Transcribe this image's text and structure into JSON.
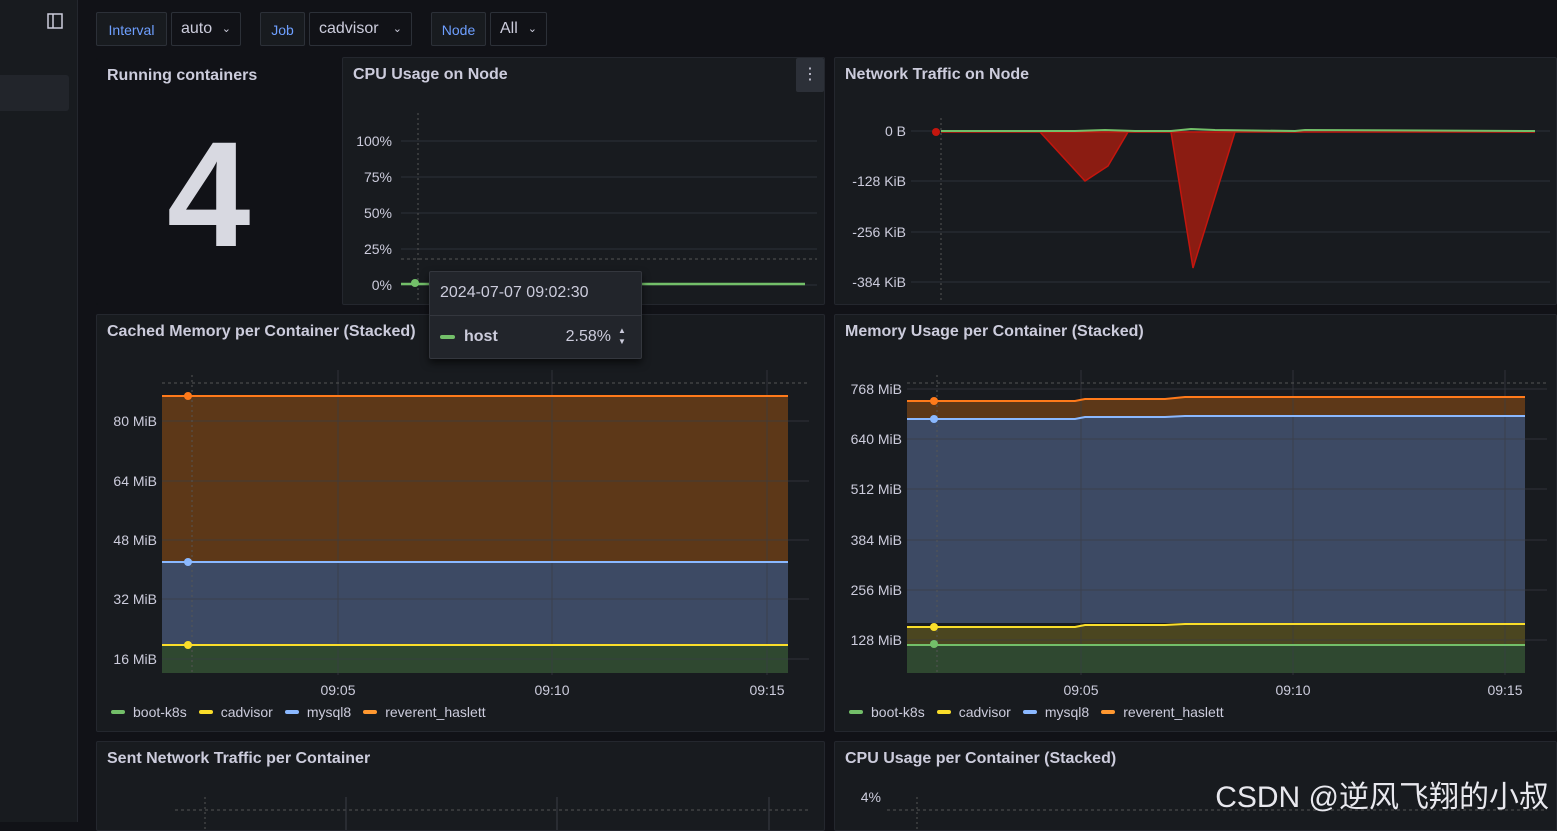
{
  "variables": [
    {
      "label": "Interval",
      "value": "auto"
    },
    {
      "label": "Job",
      "value": "cadvisor"
    },
    {
      "label": "Node",
      "value": "All"
    }
  ],
  "panels": {
    "running": {
      "title": "Running containers",
      "value": "4"
    },
    "cpu_node": {
      "title": "CPU Usage on Node",
      "y_ticks": [
        "100%",
        "75%",
        "50%",
        "25%",
        "0%"
      ]
    },
    "net_node": {
      "title": "Network Traffic on Node",
      "y_ticks": [
        "0 B",
        "-128 KiB",
        "-256 KiB",
        "-384 KiB"
      ]
    },
    "cached_mem": {
      "title": "Cached Memory per Container (Stacked)",
      "y_ticks": [
        "80 MiB",
        "64 MiB",
        "48 MiB",
        "32 MiB",
        "16 MiB"
      ],
      "x_ticks": [
        "09:05",
        "09:10",
        "09:15"
      ]
    },
    "mem_usage": {
      "title": "Memory Usage per Container (Stacked)",
      "y_ticks": [
        "768 MiB",
        "640 MiB",
        "512 MiB",
        "384 MiB",
        "256 MiB",
        "128 MiB"
      ],
      "x_ticks": [
        "09:05",
        "09:10",
        "09:15"
      ]
    },
    "sent_net": {
      "title": "Sent Network Traffic per Container"
    },
    "cpu_container": {
      "title": "CPU Usage per Container (Stacked)",
      "y_ticks": [
        "4%"
      ]
    }
  },
  "legend": [
    {
      "name": "boot-k8s",
      "color": "#73bf69"
    },
    {
      "name": "cadvisor",
      "color": "#fade2a"
    },
    {
      "name": "mysql8",
      "color": "#8ab8ff"
    },
    {
      "name": "reverent_haslett",
      "color": "#ff9830"
    }
  ],
  "tooltip": {
    "time": "2024-07-07 09:02:30",
    "series": "host",
    "value": "2.58%",
    "color": "#73bf69"
  },
  "chart_data": [
    {
      "type": "line",
      "title": "CPU Usage on Node",
      "series": [
        {
          "name": "host",
          "values": [
            2.58
          ]
        }
      ],
      "ylim": [
        0,
        100
      ],
      "y_unit": "%"
    },
    {
      "type": "area",
      "title": "Network Traffic on Node",
      "y_unit": "KiB",
      "ylim": [
        -384,
        0
      ],
      "series": [
        {
          "values": [
            0,
            0,
            -120,
            0,
            0,
            -360,
            0,
            0
          ]
        }
      ]
    },
    {
      "type": "area",
      "title": "Cached Memory per Container (Stacked)",
      "y_unit": "MiB",
      "x": [
        "09:05",
        "09:10",
        "09:15"
      ],
      "series": [
        {
          "name": "boot-k8s",
          "values": [
            20,
            20,
            20
          ]
        },
        {
          "name": "cadvisor",
          "values": [
            20,
            20,
            20
          ]
        },
        {
          "name": "mysql8",
          "values": [
            42,
            42,
            42
          ]
        },
        {
          "name": "reverent_haslett",
          "values": [
            86,
            86,
            86
          ]
        }
      ]
    },
    {
      "type": "area",
      "title": "Memory Usage per Container (Stacked)",
      "y_unit": "MiB",
      "x": [
        "09:05",
        "09:10",
        "09:15"
      ],
      "series": [
        {
          "name": "boot-k8s",
          "values": [
            115,
            115,
            115
          ]
        },
        {
          "name": "cadvisor",
          "values": [
            165,
            168,
            170
          ]
        },
        {
          "name": "mysql8",
          "values": [
            700,
            705,
            710
          ]
        },
        {
          "name": "reverent_haslett",
          "values": [
            745,
            750,
            755
          ]
        }
      ]
    }
  ],
  "watermark": "CSDN @逆风飞翔的小叔"
}
